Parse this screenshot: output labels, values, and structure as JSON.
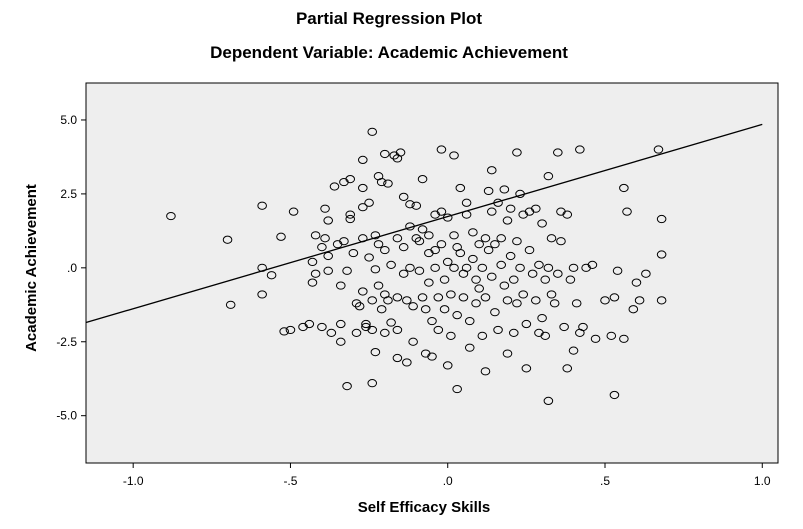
{
  "chart_data": {
    "type": "scatter",
    "title": "Partial Regression Plot",
    "subtitle": "Dependent Variable: Academic Achievement",
    "xlabel": "Self Efficacy Skills",
    "ylabel": "Academic Achievement",
    "xlim": [
      -1.15,
      1.05
    ],
    "ylim": [
      -6.6,
      6.25
    ],
    "x_ticks": [
      -1.0,
      -0.5,
      0.0,
      0.5,
      1.0
    ],
    "x_tick_labels": [
      "-1.0",
      "-.5",
      ".0",
      ".5",
      "1.0"
    ],
    "y_ticks": [
      5.0,
      2.5,
      0.0,
      -2.5,
      -5.0
    ],
    "y_tick_labels": [
      "5.0",
      "2.5",
      ".0",
      "-2.5",
      "-5.0"
    ],
    "grid": false,
    "plot_background": "#eeeeee",
    "marker_color": "#000000",
    "fit_line": {
      "x": [
        -1.15,
        1.0
      ],
      "y": [
        -1.85,
        4.85
      ]
    },
    "points": [
      [
        -0.88,
        1.75
      ],
      [
        -0.7,
        0.95
      ],
      [
        -0.69,
        -1.25
      ],
      [
        -0.59,
        2.1
      ],
      [
        -0.59,
        0.0
      ],
      [
        -0.59,
        -0.9
      ],
      [
        -0.56,
        -0.25
      ],
      [
        -0.53,
        1.05
      ],
      [
        -0.52,
        -2.15
      ],
      [
        -0.5,
        -2.1
      ],
      [
        -0.49,
        1.9
      ],
      [
        -0.46,
        -2.0
      ],
      [
        -0.44,
        -1.9
      ],
      [
        -0.43,
        -0.5
      ],
      [
        -0.43,
        0.2
      ],
      [
        -0.42,
        1.1
      ],
      [
        -0.42,
        -0.2
      ],
      [
        -0.4,
        0.7
      ],
      [
        -0.4,
        -2.0
      ],
      [
        -0.39,
        2.0
      ],
      [
        -0.39,
        1.0
      ],
      [
        -0.38,
        1.6
      ],
      [
        -0.38,
        -0.1
      ],
      [
        -0.38,
        0.4
      ],
      [
        -0.37,
        -2.2
      ],
      [
        -0.36,
        2.75
      ],
      [
        -0.35,
        0.8
      ],
      [
        -0.34,
        -0.6
      ],
      [
        -0.34,
        -1.9
      ],
      [
        -0.34,
        -2.5
      ],
      [
        -0.33,
        2.9
      ],
      [
        -0.33,
        0.9
      ],
      [
        -0.32,
        -0.1
      ],
      [
        -0.32,
        -4.0
      ],
      [
        -0.31,
        3.0
      ],
      [
        -0.31,
        1.8
      ],
      [
        -0.31,
        1.65
      ],
      [
        -0.3,
        0.5
      ],
      [
        -0.29,
        -1.2
      ],
      [
        -0.29,
        -2.2
      ],
      [
        -0.28,
        -1.3
      ],
      [
        -0.27,
        3.65
      ],
      [
        -0.27,
        2.7
      ],
      [
        -0.27,
        2.05
      ],
      [
        -0.27,
        1.0
      ],
      [
        -0.27,
        -0.8
      ],
      [
        -0.26,
        -1.9
      ],
      [
        -0.26,
        -2.0
      ],
      [
        -0.25,
        2.2
      ],
      [
        -0.25,
        0.35
      ],
      [
        -0.24,
        4.6
      ],
      [
        -0.24,
        -1.1
      ],
      [
        -0.24,
        -2.1
      ],
      [
        -0.24,
        -3.9
      ],
      [
        -0.23,
        1.1
      ],
      [
        -0.23,
        -0.05
      ],
      [
        -0.23,
        -2.85
      ],
      [
        -0.22,
        3.1
      ],
      [
        -0.22,
        0.8
      ],
      [
        -0.22,
        -0.6
      ],
      [
        -0.21,
        2.9
      ],
      [
        -0.21,
        -1.4
      ],
      [
        -0.2,
        3.85
      ],
      [
        -0.2,
        0.6
      ],
      [
        -0.2,
        -0.9
      ],
      [
        -0.2,
        -2.2
      ],
      [
        -0.19,
        2.85
      ],
      [
        -0.19,
        -1.1
      ],
      [
        -0.18,
        0.1
      ],
      [
        -0.18,
        -1.85
      ],
      [
        -0.17,
        3.8
      ],
      [
        -0.16,
        3.7
      ],
      [
        -0.16,
        1.0
      ],
      [
        -0.16,
        -1.0
      ],
      [
        -0.16,
        -2.1
      ],
      [
        -0.16,
        -3.05
      ],
      [
        -0.15,
        3.9
      ],
      [
        -0.14,
        2.4
      ],
      [
        -0.14,
        0.7
      ],
      [
        -0.14,
        -0.2
      ],
      [
        -0.13,
        -1.1
      ],
      [
        -0.13,
        -3.2
      ],
      [
        -0.12,
        2.15
      ],
      [
        -0.12,
        1.4
      ],
      [
        -0.12,
        0.0
      ],
      [
        -0.11,
        -1.3
      ],
      [
        -0.11,
        -2.5
      ],
      [
        -0.1,
        2.1
      ],
      [
        -0.1,
        1.0
      ],
      [
        -0.09,
        0.9
      ],
      [
        -0.09,
        -0.1
      ],
      [
        -0.08,
        3.0
      ],
      [
        -0.08,
        1.3
      ],
      [
        -0.08,
        -1.0
      ],
      [
        -0.07,
        -1.4
      ],
      [
        -0.07,
        -2.9
      ],
      [
        -0.06,
        1.1
      ],
      [
        -0.06,
        0.5
      ],
      [
        -0.06,
        -0.5
      ],
      [
        -0.05,
        -1.8
      ],
      [
        -0.05,
        -3.0
      ],
      [
        -0.04,
        1.8
      ],
      [
        -0.04,
        0.6
      ],
      [
        -0.04,
        0.0
      ],
      [
        -0.03,
        -1.0
      ],
      [
        -0.03,
        -2.1
      ],
      [
        -0.02,
        4.0
      ],
      [
        -0.02,
        1.9
      ],
      [
        -0.02,
        0.8
      ],
      [
        -0.01,
        -0.4
      ],
      [
        -0.01,
        -1.4
      ],
      [
        0.0,
        1.7
      ],
      [
        0.0,
        0.2
      ],
      [
        0.0,
        -3.3
      ],
      [
        0.01,
        -0.9
      ],
      [
        0.01,
        -2.3
      ],
      [
        0.02,
        3.8
      ],
      [
        0.02,
        1.1
      ],
      [
        0.02,
        0.0
      ],
      [
        0.03,
        0.7
      ],
      [
        0.03,
        -1.6
      ],
      [
        0.03,
        -4.1
      ],
      [
        0.04,
        2.7
      ],
      [
        0.04,
        0.5
      ],
      [
        0.05,
        -0.2
      ],
      [
        0.05,
        -1.0
      ],
      [
        0.06,
        2.2
      ],
      [
        0.06,
        1.8
      ],
      [
        0.06,
        0.0
      ],
      [
        0.07,
        -1.8
      ],
      [
        0.07,
        -2.7
      ],
      [
        0.08,
        1.2
      ],
      [
        0.08,
        0.3
      ],
      [
        0.09,
        -0.4
      ],
      [
        0.09,
        -1.2
      ],
      [
        0.1,
        0.8
      ],
      [
        0.1,
        -0.7
      ],
      [
        0.11,
        0.0
      ],
      [
        0.11,
        -2.3
      ],
      [
        0.12,
        1.0
      ],
      [
        0.12,
        -1.0
      ],
      [
        0.12,
        -3.5
      ],
      [
        0.13,
        2.6
      ],
      [
        0.13,
        0.6
      ],
      [
        0.14,
        3.3
      ],
      [
        0.14,
        1.9
      ],
      [
        0.14,
        -0.3
      ],
      [
        0.15,
        0.8
      ],
      [
        0.15,
        -1.5
      ],
      [
        0.16,
        2.2
      ],
      [
        0.16,
        -2.1
      ],
      [
        0.17,
        1.0
      ],
      [
        0.17,
        0.1
      ],
      [
        0.18,
        2.65
      ],
      [
        0.18,
        -0.6
      ],
      [
        0.19,
        1.6
      ],
      [
        0.19,
        -1.1
      ],
      [
        0.19,
        -2.9
      ],
      [
        0.2,
        2.0
      ],
      [
        0.2,
        0.4
      ],
      [
        0.21,
        -0.4
      ],
      [
        0.21,
        -2.2
      ],
      [
        0.22,
        3.9
      ],
      [
        0.22,
        0.9
      ],
      [
        0.22,
        -1.2
      ],
      [
        0.23,
        2.5
      ],
      [
        0.23,
        0.0
      ],
      [
        0.24,
        1.8
      ],
      [
        0.24,
        -0.9
      ],
      [
        0.25,
        -1.9
      ],
      [
        0.25,
        -3.4
      ],
      [
        0.26,
        1.9
      ],
      [
        0.26,
        0.6
      ],
      [
        0.27,
        -0.2
      ],
      [
        0.28,
        2.0
      ],
      [
        0.28,
        -1.1
      ],
      [
        0.29,
        0.1
      ],
      [
        0.29,
        -2.2
      ],
      [
        0.3,
        1.5
      ],
      [
        0.3,
        -1.7
      ],
      [
        0.31,
        -0.4
      ],
      [
        0.31,
        -2.3
      ],
      [
        0.32,
        3.1
      ],
      [
        0.32,
        0.0
      ],
      [
        0.32,
        -4.5
      ],
      [
        0.33,
        1.0
      ],
      [
        0.33,
        -0.9
      ],
      [
        0.34,
        -1.2
      ],
      [
        0.35,
        3.9
      ],
      [
        0.35,
        -0.2
      ],
      [
        0.36,
        1.9
      ],
      [
        0.36,
        0.9
      ],
      [
        0.37,
        -2.0
      ],
      [
        0.38,
        1.8
      ],
      [
        0.38,
        -3.4
      ],
      [
        0.39,
        -0.4
      ],
      [
        0.4,
        0.0
      ],
      [
        0.4,
        -2.8
      ],
      [
        0.41,
        -1.2
      ],
      [
        0.42,
        4.0
      ],
      [
        0.42,
        -2.2
      ],
      [
        0.43,
        -2.0
      ],
      [
        0.44,
        0.0
      ],
      [
        0.46,
        0.1
      ],
      [
        0.47,
        -2.4
      ],
      [
        0.5,
        -1.1
      ],
      [
        0.52,
        -2.3
      ],
      [
        0.53,
        -1.0
      ],
      [
        0.53,
        -4.3
      ],
      [
        0.54,
        -0.1
      ],
      [
        0.56,
        2.7
      ],
      [
        0.56,
        -2.4
      ],
      [
        0.57,
        1.9
      ],
      [
        0.59,
        -1.4
      ],
      [
        0.6,
        -0.5
      ],
      [
        0.61,
        -1.1
      ],
      [
        0.63,
        -0.2
      ],
      [
        0.67,
        4.0
      ],
      [
        0.68,
        1.65
      ],
      [
        0.68,
        0.45
      ],
      [
        0.68,
        -1.1
      ]
    ]
  }
}
